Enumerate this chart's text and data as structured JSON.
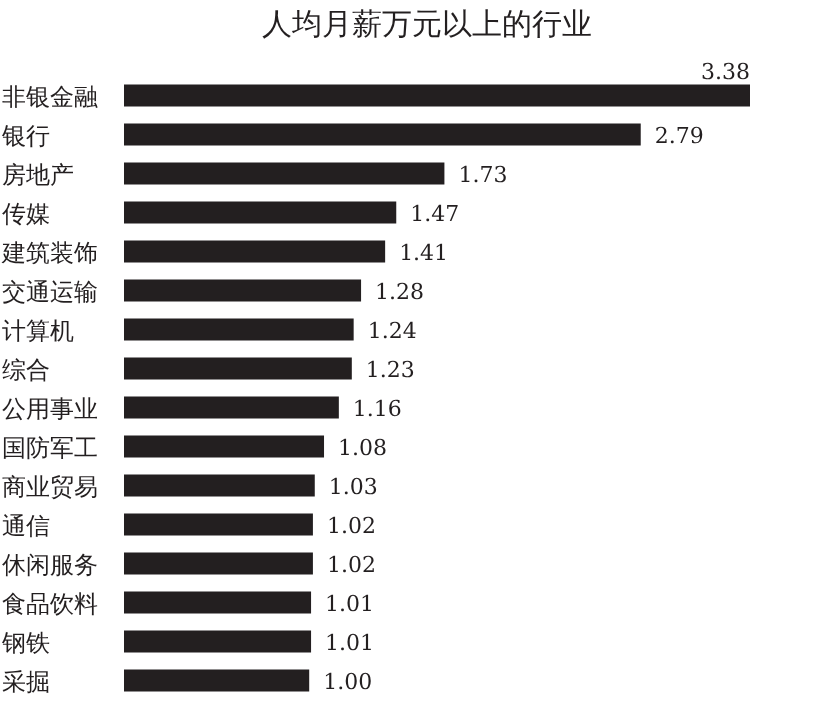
{
  "chart_data": {
    "type": "bar",
    "orientation": "horizontal",
    "title": "人均月薪万元以上的行业",
    "categories": [
      "非银金融",
      "银行",
      "房地产",
      "传媒",
      "建筑装饰",
      "交通运输",
      "计算机",
      "综合",
      "公用事业",
      "国防军工",
      "商业贸易",
      "通信",
      "休闲服务",
      "食品饮料",
      "钢铁",
      "采掘"
    ],
    "values": [
      3.38,
      2.79,
      1.73,
      1.47,
      1.41,
      1.28,
      1.24,
      1.23,
      1.16,
      1.08,
      1.03,
      1.02,
      1.02,
      1.01,
      1.01,
      1.0
    ],
    "value_labels": [
      "3.38",
      "2.79",
      "1.73",
      "1.47",
      "1.41",
      "1.28",
      "1.24",
      "1.23",
      "1.16",
      "1.08",
      "1.03",
      "1.02",
      "1.02",
      "1.01",
      "1.01",
      "1.00"
    ],
    "color": "#231f20"
  }
}
